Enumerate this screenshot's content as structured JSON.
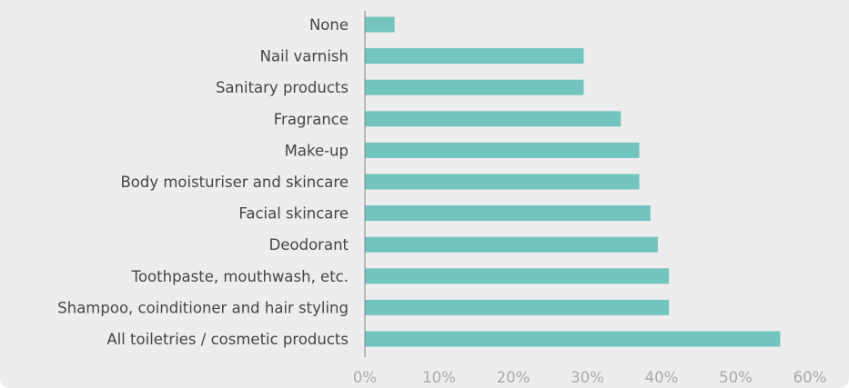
{
  "chart_data": {
    "type": "bar",
    "orientation": "horizontal",
    "categories": [
      "None",
      "Nail varnish",
      "Sanitary products",
      "Fragrance",
      "Make-up",
      "Body moisturiser and skincare",
      "Facial skincare",
      "Deodorant",
      "Toothpaste, mouthwash, etc.",
      "Shampoo, coinditioner and hair styling",
      "All toiletries / cosmetic products"
    ],
    "values": [
      4,
      29.5,
      29.5,
      34.5,
      37,
      37,
      38.5,
      39.5,
      41,
      41,
      56
    ],
    "x_ticks": [
      "0%",
      "10%",
      "20%",
      "30%",
      "40%",
      "50%",
      "60%"
    ],
    "xlim": [
      0,
      60
    ],
    "grid": false,
    "colors": {
      "bar": "#72c4bf",
      "background": "#ededed",
      "category_text": "#454545",
      "tick_text": "#a9a9a9",
      "axis": "#888888"
    }
  }
}
